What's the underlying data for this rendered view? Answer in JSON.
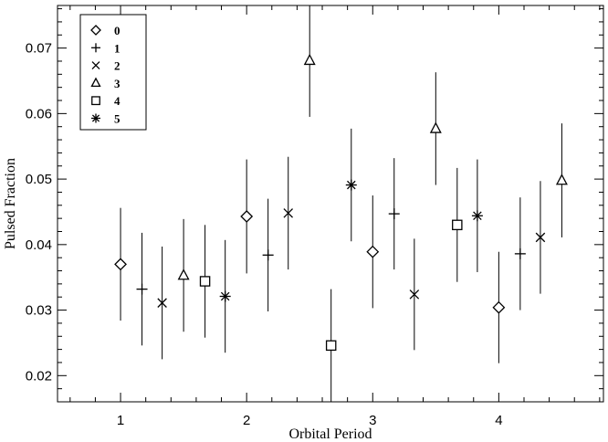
{
  "chart_data": {
    "type": "scatter",
    "title": "",
    "xlabel": "Orbital Period",
    "ylabel": "Pulsed Fraction",
    "xlim": [
      0.5,
      4.83
    ],
    "ylim": [
      0.016,
      0.0765
    ],
    "xticks": [
      1,
      2,
      3,
      4
    ],
    "xtick_labels": [
      "1",
      "2",
      "3",
      "4"
    ],
    "yticks": [
      0.02,
      0.03,
      0.04,
      0.05,
      0.06,
      0.07
    ],
    "ytick_labels": [
      "0.02",
      "0.03",
      "0.04",
      "0.05",
      "0.06",
      "0.07"
    ],
    "grid": false,
    "legend_position": "top-left",
    "series": [
      {
        "name": "0",
        "marker": "diamond",
        "points": [
          {
            "x": 1.0,
            "y": 0.037,
            "err": 0.0086
          },
          {
            "x": 2.0,
            "y": 0.0443,
            "err": 0.0087
          },
          {
            "x": 3.0,
            "y": 0.0389,
            "err": 0.0086
          },
          {
            "x": 4.0,
            "y": 0.0304,
            "err": 0.0085
          }
        ]
      },
      {
        "name": "1",
        "marker": "plus",
        "points": [
          {
            "x": 1.17,
            "y": 0.0332,
            "err": 0.0086
          },
          {
            "x": 2.17,
            "y": 0.0384,
            "err": 0.0086
          },
          {
            "x": 3.17,
            "y": 0.0447,
            "err": 0.0085
          },
          {
            "x": 4.17,
            "y": 0.0386,
            "err": 0.0086
          }
        ]
      },
      {
        "name": "2",
        "marker": "x",
        "points": [
          {
            "x": 1.33,
            "y": 0.0311,
            "err": 0.0086
          },
          {
            "x": 2.33,
            "y": 0.0448,
            "err": 0.0086
          },
          {
            "x": 3.33,
            "y": 0.0324,
            "err": 0.0085
          },
          {
            "x": 4.33,
            "y": 0.0411,
            "err": 0.0086
          }
        ]
      },
      {
        "name": "3",
        "marker": "triangle",
        "points": [
          {
            "x": 1.5,
            "y": 0.0353,
            "err": 0.0086
          },
          {
            "x": 2.5,
            "y": 0.0681,
            "err": 0.0086
          },
          {
            "x": 3.5,
            "y": 0.0577,
            "err": 0.0086
          },
          {
            "x": 4.5,
            "y": 0.0498,
            "err": 0.0087
          }
        ]
      },
      {
        "name": "4",
        "marker": "square",
        "points": [
          {
            "x": 1.67,
            "y": 0.0344,
            "err": 0.0086
          },
          {
            "x": 2.67,
            "y": 0.0246,
            "err": 0.0086
          },
          {
            "x": 3.67,
            "y": 0.043,
            "err": 0.0087
          }
        ]
      },
      {
        "name": "5",
        "marker": "asterisk",
        "points": [
          {
            "x": 1.83,
            "y": 0.0321,
            "err": 0.0086
          },
          {
            "x": 2.83,
            "y": 0.0491,
            "err": 0.0086
          },
          {
            "x": 3.83,
            "y": 0.0444,
            "err": 0.0086
          }
        ]
      }
    ]
  }
}
